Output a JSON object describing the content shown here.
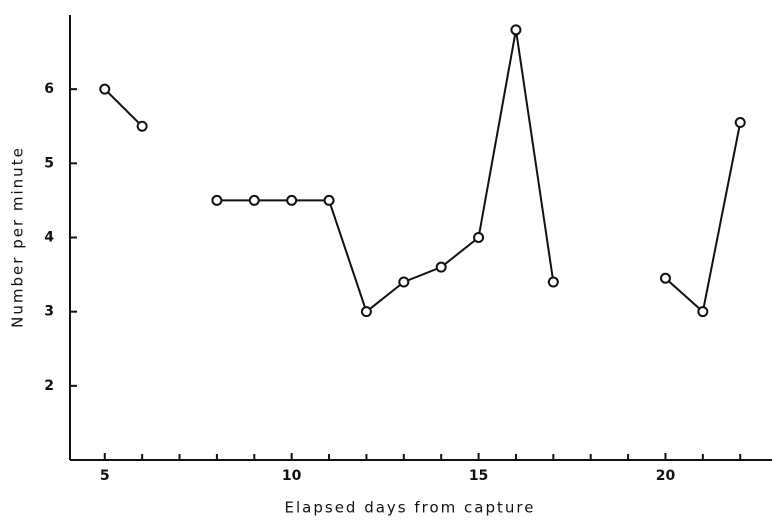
{
  "chart_data": {
    "type": "line",
    "x_label": "Elapsed days from capture",
    "y_label": "Number per minute",
    "x": [
      5,
      6,
      7,
      8,
      9,
      10,
      11,
      12,
      13,
      14,
      15,
      16,
      17,
      18,
      19,
      20,
      21,
      22
    ],
    "series": [
      {
        "color": "#111111",
        "values": [
          6,
          5.5,
          null,
          4.5,
          4.5,
          4.5,
          4.5,
          3,
          3.4,
          3.6,
          4,
          6.8,
          3.4,
          null,
          null,
          3.45,
          3,
          5.55
        ]
      }
    ],
    "xlim": [
      4.07,
      22.85
    ],
    "ylim": [
      1,
      7
    ],
    "xticks": [
      5,
      10,
      15,
      20
    ],
    "xminorticks": [
      6,
      7,
      8,
      9,
      11,
      12,
      13,
      14,
      16,
      17,
      18,
      19,
      21,
      22
    ],
    "yticks": [
      2,
      3,
      4,
      5,
      6
    ]
  }
}
